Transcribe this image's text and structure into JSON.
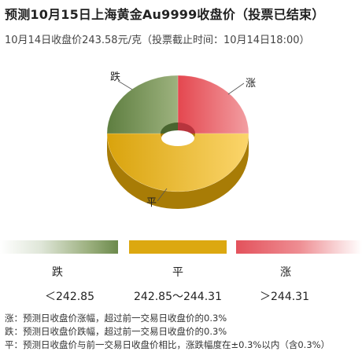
{
  "header": {
    "title": "预测10月15日上海黄金Au9999收盘价（投票已结束）",
    "subtitle": "10月14日收盘价243.58元/克（投票截止时间：10月14日18:00）"
  },
  "chart_data": {
    "type": "pie",
    "style": "3d-donut",
    "slices": [
      {
        "label": "涨",
        "value": 25,
        "color": "#e9606a"
      },
      {
        "label": "平",
        "value": 50,
        "color": "#dca810"
      },
      {
        "label": "跌",
        "value": 25,
        "color": "#6f8d4e"
      }
    ]
  },
  "legend": [
    {
      "name": "跌",
      "range": "＜242.85",
      "color": "#6c8a4c"
    },
    {
      "name": "平",
      "range": "242.85～244.31",
      "color": "#dca810"
    },
    {
      "name": "涨",
      "range": "＞244.31",
      "color": "#e3525c"
    }
  ],
  "notes": [
    "涨：预测日收盘价涨幅，超过前一交易日收盘价的0.3%",
    "跌：预测日收盘价跌幅，超过前一交易日收盘价的0.3%",
    "平：预测日收盘价与前一交易日收盘价相比，涨跌幅度在±0.3%以内（含0.3%）"
  ]
}
